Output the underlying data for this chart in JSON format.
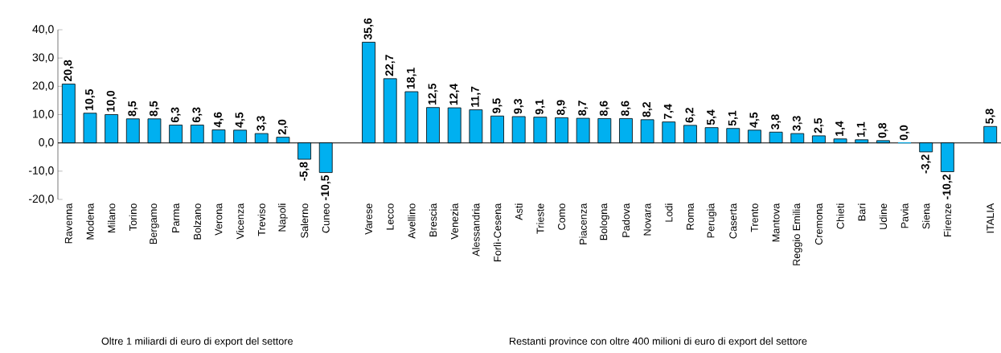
{
  "chart_data": {
    "type": "bar",
    "categories": [
      "Ravenna",
      "Modena",
      "Milano",
      "Torino",
      "Bergamo",
      "Parma",
      "Bolzano",
      "Verona",
      "Vicenza",
      "Treviso",
      "Napoli",
      "Salerno",
      "Cuneo",
      null,
      "Varese",
      "Lecco",
      "Avellino",
      "Brescia",
      "Venezia",
      "Alessandria",
      "Forlì-Cesena",
      "Asti",
      "Trieste",
      "Como",
      "Piacenza",
      "Bologna",
      "Padova",
      "Novara",
      "Lodi",
      "Roma",
      "Perugia",
      "Caserta",
      "Trento",
      "Mantova",
      "Reggio Emilia",
      "Cremona",
      "Chieti",
      "Bari",
      "Udine",
      "Pavia",
      "Siena",
      "Firenze",
      null,
      "ITALIA"
    ],
    "values": [
      20.8,
      10.5,
      10.0,
      8.5,
      8.5,
      6.3,
      6.3,
      4.6,
      4.5,
      3.3,
      2.0,
      -5.8,
      -10.5,
      null,
      35.6,
      22.7,
      18.1,
      12.5,
      12.4,
      11.7,
      9.5,
      9.3,
      9.1,
      8.9,
      8.7,
      8.6,
      8.6,
      8.2,
      7.4,
      6.2,
      5.4,
      5.1,
      4.5,
      3.8,
      3.3,
      2.5,
      1.4,
      1.1,
      0.8,
      0.0,
      -3.2,
      -10.2,
      null,
      5.8
    ],
    "value_labels": [
      "20,8",
      "10,5",
      "10,0",
      "8,5",
      "8,5",
      "6,3",
      "6,3",
      "4,6",
      "4,5",
      "3,3",
      "2,0",
      "-5,8",
      "-10,5",
      null,
      "35,6",
      "22,7",
      "18,1",
      "12,5",
      "12,4",
      "11,7",
      "9,5",
      "9,3",
      "9,1",
      "8,9",
      "8,7",
      "8,6",
      "8,6",
      "8,2",
      "7,4",
      "6,2",
      "5,4",
      "5,1",
      "4,5",
      "3,8",
      "3,3",
      "2,5",
      "1,4",
      "1,1",
      "0,8",
      "0,0",
      "-3,2",
      "-10,2",
      null,
      "5,8"
    ],
    "color": "#00b0f0",
    "ylim": [
      -20,
      40
    ],
    "yticks": [
      {
        "value": -20,
        "label": "-20,0"
      },
      {
        "value": -10,
        "label": "-10,0"
      },
      {
        "value": 0,
        "label": "0,0"
      },
      {
        "value": 10,
        "label": "10,0"
      },
      {
        "value": 20,
        "label": "20,0"
      },
      {
        "value": 30,
        "label": "30,0"
      },
      {
        "value": 40,
        "label": "40,0"
      }
    ],
    "annotations": [
      "Oltre 1 miliardi di euro di export del settore",
      "Restanti province con oltre 400 milioni di euro di export del settore"
    ]
  }
}
